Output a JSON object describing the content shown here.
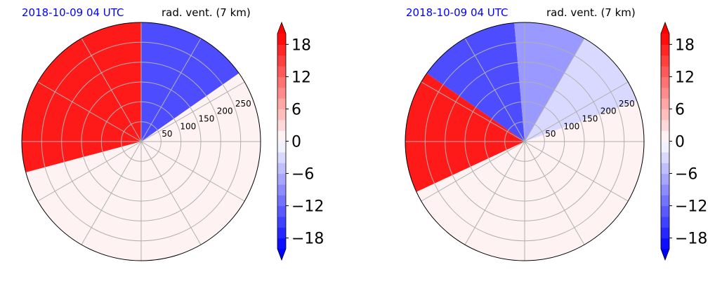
{
  "chart_data": [
    {
      "type": "heatmap",
      "projection": "polar",
      "date_label": "2018-10-09 04 UTC",
      "title": "rad. vent. (7 km)",
      "radial_ticks": [
        "50",
        "100",
        "150",
        "200",
        "250"
      ],
      "radial_range": [
        0,
        300
      ],
      "angular_gridlines_deg": [
        0,
        30,
        60,
        90,
        120,
        150,
        180,
        210,
        240,
        270,
        300,
        330
      ],
      "grid": true,
      "colorbar": {
        "ticks": [
          "18",
          "12",
          "6",
          "0",
          "−6",
          "−12",
          "−18"
        ],
        "tick_values": [
          18,
          12,
          6,
          0,
          -6,
          -12,
          -18
        ],
        "range": [
          -20,
          20
        ],
        "step": 2,
        "extend": "both",
        "colormap": "bwr",
        "low_color": "#0000ff",
        "mid_color": "#ffffff",
        "high_color": "#ff0000"
      },
      "field_sectors": [
        {
          "from_deg": 90,
          "to_deg": 195,
          "value": 18
        },
        {
          "from_deg": 35,
          "to_deg": 90,
          "value": -14
        },
        {
          "from_deg": 195,
          "to_deg": 395,
          "value": 1
        }
      ]
    },
    {
      "type": "heatmap",
      "projection": "polar",
      "date_label": "2018-10-09 04 UTC",
      "title": "rad. vent. (7 km)",
      "radial_ticks": [
        "50",
        "100",
        "150",
        "200",
        "250"
      ],
      "radial_range": [
        0,
        300
      ],
      "angular_gridlines_deg": [
        0,
        30,
        60,
        90,
        120,
        150,
        180,
        210,
        240,
        270,
        300,
        330
      ],
      "grid": true,
      "colorbar": {
        "ticks": [
          "18",
          "12",
          "6",
          "0",
          "−6",
          "−12",
          "−18"
        ],
        "tick_values": [
          18,
          12,
          6,
          0,
          -6,
          -12,
          -18
        ],
        "range": [
          -20,
          20
        ],
        "step": 2,
        "extend": "both",
        "colormap": "bwr",
        "low_color": "#0000ff",
        "mid_color": "#ffffff",
        "high_color": "#ff0000"
      },
      "field_sectors": [
        {
          "from_deg": 145,
          "to_deg": 205,
          "value": 18
        },
        {
          "from_deg": 95,
          "to_deg": 145,
          "value": -14
        },
        {
          "from_deg": 60,
          "to_deg": 95,
          "value": -8
        },
        {
          "from_deg": 20,
          "to_deg": 60,
          "value": -3
        },
        {
          "from_deg": 205,
          "to_deg": 380,
          "value": 1
        }
      ]
    }
  ]
}
